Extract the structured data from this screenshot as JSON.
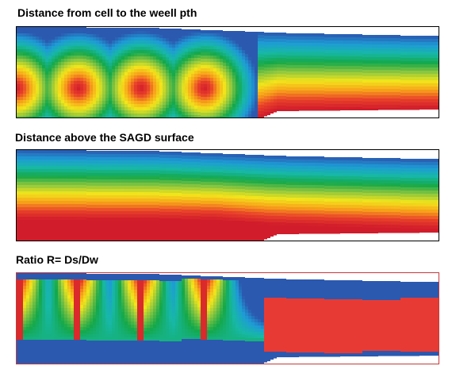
{
  "panels": [
    {
      "title": "Distance from cell to the weell pth"
    },
    {
      "title": "Distance above the SAGD surface"
    },
    {
      "title": "Ratio R= Ds/Dw"
    }
  ],
  "colors": {
    "rainbow": [
      "#2b59b0",
      "#1e9bd6",
      "#17b8a6",
      "#14a84a",
      "#8cc63f",
      "#f2e51b",
      "#f7a11a",
      "#e8402a",
      "#d11c2b"
    ],
    "ratio_red": "#e83a34",
    "ratio_blue": "#2b59b0",
    "ratio_frame": "#c63a3a"
  }
}
